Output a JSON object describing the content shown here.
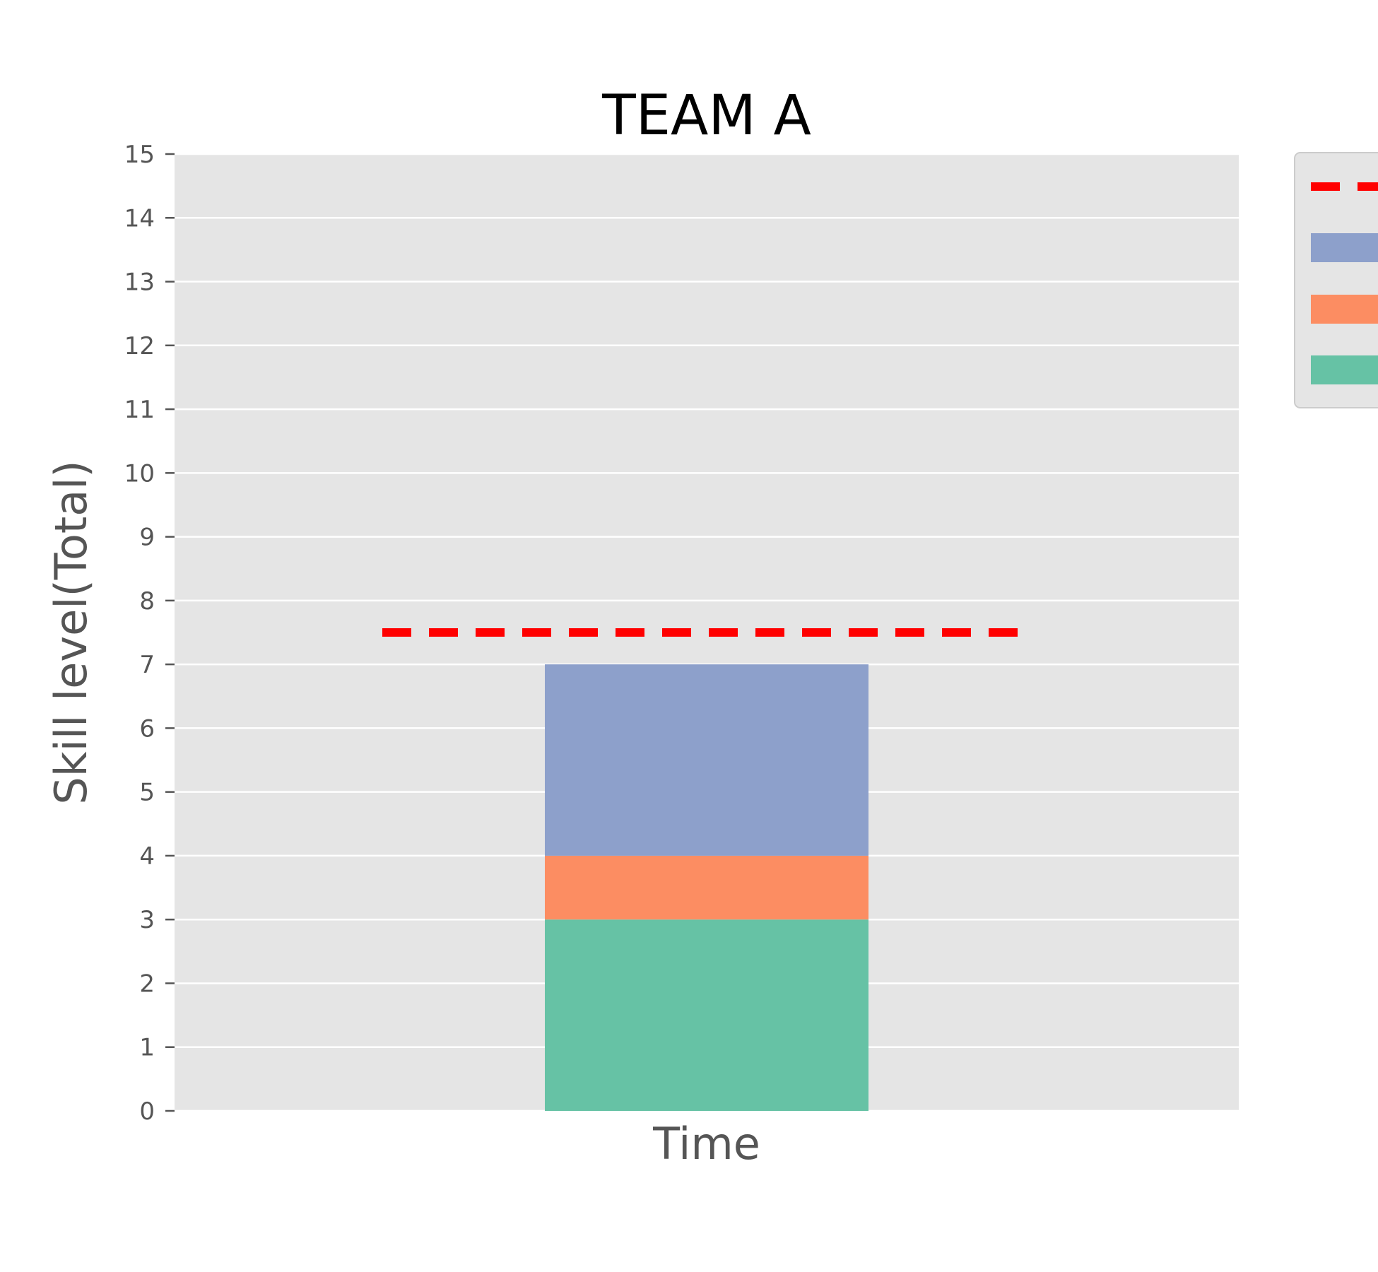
{
  "chart_data": {
    "type": "bar",
    "stacked": true,
    "title": "TEAM A",
    "xlabel": "Time",
    "ylabel": "Skill level(Total)",
    "ylim": [
      0,
      15
    ],
    "yticks": [
      "0",
      "1",
      "2",
      "3",
      "4",
      "5",
      "6",
      "7",
      "8",
      "9",
      "10",
      "11",
      "12",
      "13",
      "14",
      "15"
    ],
    "grid": true,
    "legend_placement": "outside top-right (clipped)",
    "target_line": {
      "value": 7.5,
      "color": "#ff0000",
      "style": "dashed"
    },
    "segments": [
      {
        "bottom": 0,
        "value": 3,
        "color": "#66c2a5"
      },
      {
        "bottom": 3,
        "value": 1,
        "color": "#fc8d62"
      },
      {
        "bottom": 4,
        "value": 3,
        "color": "#8da0cb"
      }
    ],
    "colors": {
      "background": "#e5e5e5",
      "grid": "#ffffff"
    }
  }
}
